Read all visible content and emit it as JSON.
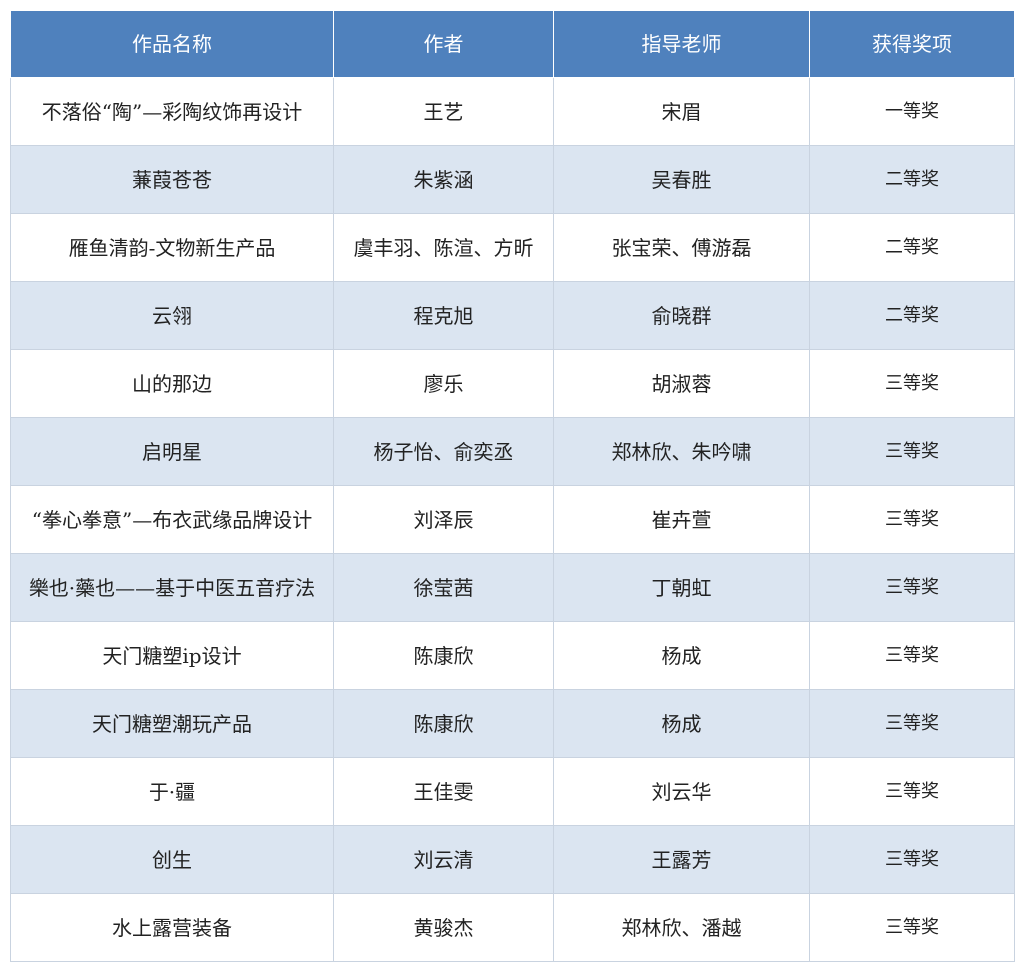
{
  "header_color": "#4f81bd",
  "alt_row_color": "#dbe5f1",
  "columns": [
    "作品名称",
    "作者",
    "指导老师",
    "获得奖项"
  ],
  "rows": [
    [
      "不落俗“陶”—彩陶纹饰再设计",
      "王艺",
      "宋眉",
      "一等奖"
    ],
    [
      "蒹葭苍苍",
      "朱紫涵",
      "吴春胜",
      "二等奖"
    ],
    [
      "雁鱼清韵-文物新生产品",
      "虞丰羽、陈渲、方昕",
      "张宝荣、傅游磊",
      "二等奖"
    ],
    [
      "云翎",
      "程克旭",
      "俞晓群",
      "二等奖"
    ],
    [
      "山的那边",
      "廖乐",
      "胡淑蓉",
      "三等奖"
    ],
    [
      "启明星",
      "杨子怡、俞奕丞",
      "郑林欣、朱吟啸",
      "三等奖"
    ],
    [
      "“拳心拳意”—布衣武缘品牌设计",
      "刘泽辰",
      "崔卉萱",
      "三等奖"
    ],
    [
      "樂也·藥也——基于中医五音疗法",
      "徐莹茜",
      "丁朝虹",
      "三等奖"
    ],
    [
      "天门糖塑ip设计",
      "陈康欣",
      "杨成",
      "三等奖"
    ],
    [
      "天门糖塑潮玩产品",
      "陈康欣",
      "杨成",
      "三等奖"
    ],
    [
      "于·疆",
      "王佳雯",
      "刘云华",
      "三等奖"
    ],
    [
      "创生",
      "刘云清",
      "王露芳",
      "三等奖"
    ],
    [
      "水上露营装备",
      "黄骏杰",
      "郑林欣、潘越",
      "三等奖"
    ]
  ]
}
